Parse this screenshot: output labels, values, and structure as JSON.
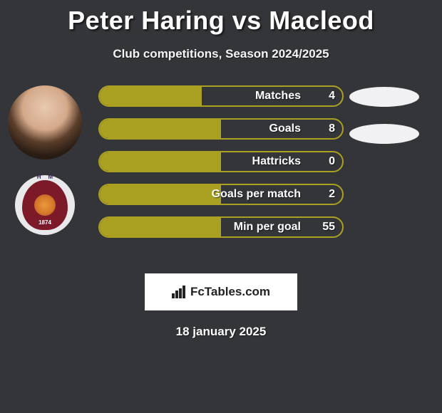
{
  "title": "Peter Haring vs Macleod",
  "subtitle": "Club competitions, Season 2024/2025",
  "date": "18 january 2025",
  "brand": "FcTables.com",
  "crest": {
    "letters": "HM",
    "year": "1874"
  },
  "colors": {
    "background": "#333538",
    "bar_border": "#aaa022",
    "bar_fill": "#aaa022",
    "text": "#ffffff",
    "ellipse": "#f1f1f3",
    "brand_bg": "#ffffff",
    "brand_text": "#222222"
  },
  "stats": [
    {
      "label": "Matches",
      "value": "4",
      "fill_pct": 42,
      "show_ellipse": true
    },
    {
      "label": "Goals",
      "value": "8",
      "fill_pct": 50,
      "show_ellipse": true
    },
    {
      "label": "Hattricks",
      "value": "0",
      "fill_pct": 50,
      "show_ellipse": false
    },
    {
      "label": "Goals per match",
      "value": "2",
      "fill_pct": 50,
      "show_ellipse": false
    },
    {
      "label": "Min per goal",
      "value": "55",
      "fill_pct": 50,
      "show_ellipse": false
    }
  ],
  "bar_style": {
    "height": 30,
    "border_radius": 15,
    "border_width": 2,
    "label_fontsize": 16,
    "value_fontsize": 16
  }
}
